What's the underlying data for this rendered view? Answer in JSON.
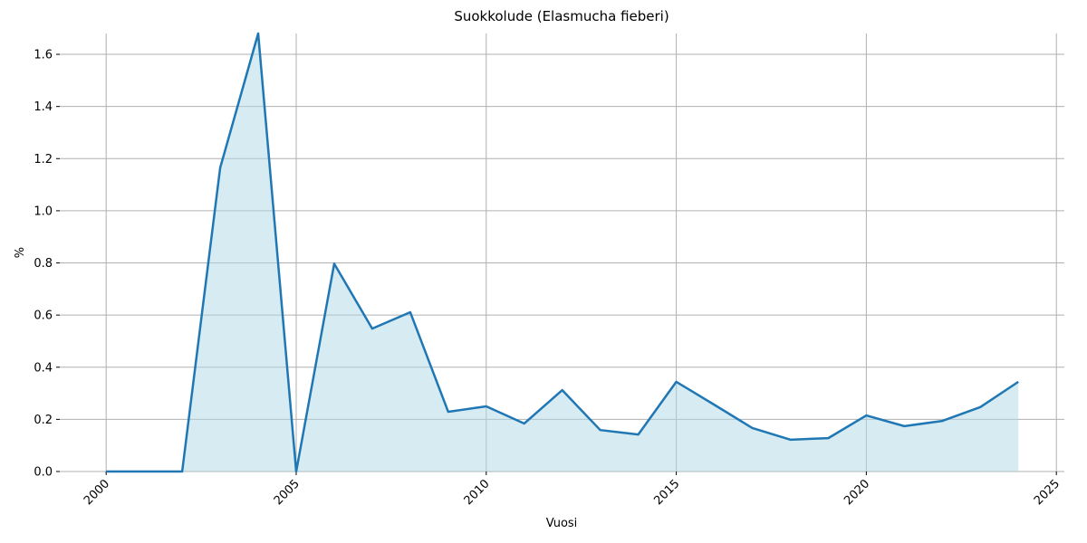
{
  "chart_data": {
    "type": "line",
    "title": "Suokkolude (Elasmucha fieberi)",
    "xlabel": "Vuosi",
    "ylabel": "%",
    "x": [
      2000,
      2001,
      2002,
      2003,
      2004,
      2005,
      2006,
      2007,
      2008,
      2009,
      2010,
      2011,
      2012,
      2013,
      2014,
      2015,
      2016,
      2017,
      2018,
      2019,
      2020,
      2021,
      2022,
      2023,
      2024
    ],
    "values": [
      0,
      0,
      0,
      1.165,
      1.68,
      0,
      0.797,
      0.548,
      0.611,
      0.229,
      0.25,
      0.184,
      0.312,
      0.159,
      0.142,
      0.344,
      0.256,
      0.167,
      0.122,
      0.128,
      0.215,
      0.174,
      0.194,
      0.247,
      0.344
    ],
    "color": "#1f77b4",
    "fill_color": "#add8e6",
    "area": true,
    "xlim": [
      1998.78,
      2025.21
    ],
    "xticks": [
      2000,
      2005,
      2010,
      2015,
      2020,
      2025
    ],
    "ylim": [
      0,
      1.68
    ],
    "yticks": [
      {
        "value": 0,
        "label": "0.0"
      },
      0.2,
      0.4,
      0.6,
      0.8,
      {
        "value": 1,
        "label": "1.0"
      },
      1.2,
      1.4,
      1.6
    ],
    "grid": true
  }
}
